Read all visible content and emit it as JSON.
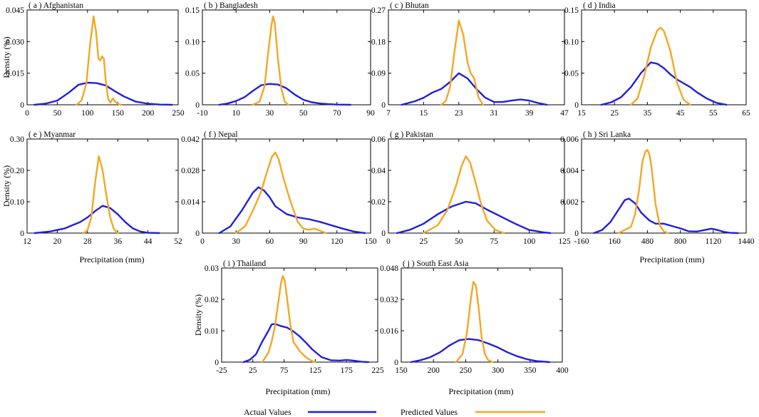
{
  "figure": {
    "y_axis_label": "Density (%)",
    "x_axis_label": "Precipitation (mm)",
    "legend": {
      "actual_label": "Actual Values",
      "predicted_label": "Predicted Values",
      "actual_color": "#1f1fe0",
      "predicted_color": "#f5a623"
    }
  },
  "chart_data": [
    {
      "type": "line",
      "title": "( a ) Afghanistan",
      "xticks": [
        "0",
        "50",
        "100",
        "150",
        "200",
        "250"
      ],
      "xlim": [
        0,
        250
      ],
      "yticks": [
        "0",
        "0.015",
        "0.030",
        "0.045"
      ],
      "ylim": [
        0,
        0.045
      ],
      "series": [
        {
          "name": "Actual Values",
          "x": [
            12,
            30,
            50,
            70,
            85,
            100,
            115,
            130,
            145,
            160,
            180,
            200,
            220,
            240
          ],
          "y": [
            0,
            0.0005,
            0.002,
            0.006,
            0.0095,
            0.0105,
            0.0103,
            0.0092,
            0.0065,
            0.004,
            0.0015,
            0.0005,
            0.0001,
            0
          ]
        },
        {
          "name": "Predicted Values",
          "x": [
            82,
            90,
            98,
            104,
            110,
            114,
            118,
            121,
            124,
            127,
            130,
            134,
            138,
            142,
            146,
            150,
            155
          ],
          "y": [
            0,
            0.002,
            0.01,
            0.028,
            0.042,
            0.035,
            0.022,
            0.021,
            0.023,
            0.022,
            0.012,
            0.003,
            0.001,
            0.003,
            0.0015,
            0.0005,
            0
          ]
        }
      ]
    },
    {
      "type": "line",
      "title": "( b ) Bangladesh",
      "xticks": [
        "-10",
        "10",
        "30",
        "50",
        "70",
        "90"
      ],
      "xlim": [
        -10,
        90
      ],
      "yticks": [
        "0",
        "0.05",
        "0.10",
        "0.15"
      ],
      "ylim": [
        0,
        0.15
      ],
      "series": [
        {
          "name": "Actual Values",
          "x": [
            0,
            5,
            10,
            15,
            20,
            25,
            30,
            35,
            40,
            45,
            50,
            55,
            60,
            65,
            70,
            78
          ],
          "y": [
            0,
            0.002,
            0.006,
            0.012,
            0.022,
            0.031,
            0.033,
            0.032,
            0.026,
            0.016,
            0.008,
            0.004,
            0.002,
            0.001,
            0.0003,
            0
          ]
        },
        {
          "name": "Predicted Values",
          "x": [
            20,
            24,
            27,
            29,
            31,
            32,
            33,
            35,
            37,
            39,
            41
          ],
          "y": [
            0,
            0.005,
            0.03,
            0.08,
            0.125,
            0.14,
            0.13,
            0.07,
            0.025,
            0.005,
            0
          ]
        }
      ]
    },
    {
      "type": "line",
      "title": "( c ) Bhutan",
      "xticks": [
        "7",
        "15",
        "23",
        "31",
        "39",
        "47"
      ],
      "xlim": [
        7,
        47
      ],
      "yticks": [
        "0",
        "0.09",
        "0.18",
        "0.27"
      ],
      "ylim": [
        0,
        0.27
      ],
      "series": [
        {
          "name": "Actual Values",
          "x": [
            10,
            13,
            15,
            17,
            19,
            21,
            23,
            25,
            27,
            29,
            31,
            33,
            35,
            37,
            39,
            41,
            43
          ],
          "y": [
            0,
            0.01,
            0.02,
            0.035,
            0.045,
            0.065,
            0.09,
            0.075,
            0.045,
            0.02,
            0.008,
            0.008,
            0.012,
            0.015,
            0.012,
            0.005,
            0
          ]
        },
        {
          "name": "Predicted Values",
          "x": [
            19,
            20,
            21,
            22,
            23,
            24,
            25,
            25.7,
            26.5,
            27.5,
            28.5
          ],
          "y": [
            0,
            0.01,
            0.05,
            0.15,
            0.24,
            0.2,
            0.12,
            0.09,
            0.075,
            0.02,
            0
          ]
        }
      ]
    },
    {
      "type": "line",
      "title": "( d ) India",
      "xticks": [
        "15",
        "25",
        "35",
        "45",
        "55",
        "65"
      ],
      "xlim": [
        15,
        65
      ],
      "yticks": [
        "0",
        "0.05",
        "0.10",
        "0.15"
      ],
      "ylim": [
        0,
        0.15
      ],
      "series": [
        {
          "name": "Actual Values",
          "x": [
            21,
            24,
            27,
            30,
            33,
            36,
            38,
            40,
            42,
            44,
            46,
            48,
            50,
            53,
            56,
            59
          ],
          "y": [
            0,
            0.004,
            0.012,
            0.028,
            0.05,
            0.067,
            0.065,
            0.058,
            0.048,
            0.04,
            0.034,
            0.028,
            0.02,
            0.01,
            0.003,
            0
          ]
        },
        {
          "name": "Predicted Values",
          "x": [
            30,
            32,
            34,
            36,
            38,
            39,
            40,
            42,
            44,
            46,
            48
          ],
          "y": [
            0,
            0.01,
            0.045,
            0.09,
            0.118,
            0.122,
            0.117,
            0.085,
            0.035,
            0.008,
            0
          ]
        }
      ]
    },
    {
      "type": "line",
      "title": "( e ) Myanmar",
      "xticks": [
        "12",
        "20",
        "28",
        "36",
        "44",
        "52"
      ],
      "xlim": [
        12,
        52
      ],
      "yticks": [
        "0",
        "0.10",
        "0.20",
        "0.30"
      ],
      "ylim": [
        0,
        0.3
      ],
      "series": [
        {
          "name": "Actual Values",
          "x": [
            14,
            18,
            22,
            26,
            28,
            30,
            32,
            34,
            36,
            38,
            40,
            42,
            44,
            47
          ],
          "y": [
            0,
            0.005,
            0.015,
            0.035,
            0.05,
            0.07,
            0.087,
            0.08,
            0.06,
            0.035,
            0.015,
            0.005,
            0.001,
            0
          ]
        },
        {
          "name": "Predicted Values",
          "x": [
            27,
            28,
            29,
            30,
            31,
            32,
            33,
            34,
            35,
            36
          ],
          "y": [
            0,
            0.01,
            0.05,
            0.16,
            0.245,
            0.2,
            0.12,
            0.05,
            0.012,
            0
          ]
        }
      ]
    },
    {
      "type": "line",
      "title": "( f ) Nepal",
      "xticks": [
        "0",
        "30",
        "60",
        "90",
        "120",
        "150"
      ],
      "xlim": [
        0,
        150
      ],
      "yticks": [
        "0",
        "0.014",
        "0.028",
        "0.042"
      ],
      "ylim": [
        0,
        0.042
      ],
      "series": [
        {
          "name": "Actual Values",
          "x": [
            15,
            25,
            35,
            45,
            50,
            55,
            60,
            65,
            75,
            85,
            95,
            105,
            115,
            125,
            135,
            145
          ],
          "y": [
            0,
            0.003,
            0.01,
            0.018,
            0.0205,
            0.019,
            0.016,
            0.012,
            0.0085,
            0.007,
            0.0062,
            0.005,
            0.0035,
            0.002,
            0.0007,
            0
          ]
        },
        {
          "name": "Predicted Values",
          "x": [
            30,
            38,
            45,
            52,
            58,
            62,
            65,
            68,
            72,
            78,
            85,
            90,
            95,
            100,
            105,
            110
          ],
          "y": [
            0,
            0.003,
            0.01,
            0.018,
            0.028,
            0.034,
            0.036,
            0.033,
            0.025,
            0.015,
            0.005,
            0.002,
            0.0015,
            0.002,
            0.001,
            0
          ]
        }
      ]
    },
    {
      "type": "line",
      "title": "( g ) Pakistan",
      "xticks": [
        "0",
        "25",
        "50",
        "75",
        "100",
        "125"
      ],
      "xlim": [
        0,
        125
      ],
      "yticks": [
        "0",
        "0.02",
        "0.04",
        "0.06"
      ],
      "ylim": [
        0,
        0.06
      ],
      "series": [
        {
          "name": "Actual Values",
          "x": [
            6,
            15,
            25,
            35,
            45,
            55,
            62,
            70,
            80,
            90,
            100,
            110,
            115
          ],
          "y": [
            0,
            0.002,
            0.006,
            0.012,
            0.017,
            0.02,
            0.019,
            0.015,
            0.0105,
            0.006,
            0.002,
            0.0005,
            0
          ]
        },
        {
          "name": "Predicted Values",
          "x": [
            25,
            35,
            42,
            48,
            52,
            55,
            58,
            62,
            66,
            70,
            76,
            82
          ],
          "y": [
            0,
            0.005,
            0.015,
            0.03,
            0.043,
            0.049,
            0.045,
            0.032,
            0.018,
            0.008,
            0.002,
            0
          ]
        }
      ]
    },
    {
      "type": "line",
      "title": "( h ) Sri Lanka",
      "xticks": [
        "-160",
        "160",
        "480",
        "800",
        "1120",
        "1440"
      ],
      "xlim": [
        -160,
        1440
      ],
      "yticks": [
        "0",
        "0.002",
        "0.004",
        "0.006"
      ],
      "ylim": [
        0,
        0.006
      ],
      "series": [
        {
          "name": "Actual Values",
          "x": [
            -40,
            40,
            120,
            200,
            260,
            300,
            360,
            420,
            500,
            560,
            640,
            720,
            800,
            880,
            960,
            1040,
            1100,
            1160,
            1220,
            1280,
            1360
          ],
          "y": [
            0,
            0.0002,
            0.0007,
            0.0015,
            0.0021,
            0.0022,
            0.0019,
            0.0013,
            0.0008,
            0.0006,
            0.0006,
            0.00045,
            0.0003,
            0.00012,
            0.0001,
            0.0002,
            0.00028,
            0.0002,
            8e-05,
            2e-05,
            0
          ]
        },
        {
          "name": "Predicted Values",
          "x": [
            200,
            260,
            320,
            360,
            400,
            430,
            460,
            480,
            500,
            520,
            560,
            600,
            640,
            680
          ],
          "y": [
            0,
            0.0002,
            0.0004,
            0.0012,
            0.0028,
            0.0045,
            0.0052,
            0.0053,
            0.005,
            0.0042,
            0.0018,
            0.0005,
            0.0001,
            0
          ]
        }
      ]
    },
    {
      "type": "line",
      "title": "( i ) Thailand",
      "xticks": [
        "-25",
        "25",
        "75",
        "125",
        "175",
        "225"
      ],
      "xlim": [
        -25,
        225
      ],
      "yticks": [
        "0",
        "0.01",
        "0.02",
        "0.03"
      ],
      "ylim": [
        0,
        0.03
      ],
      "series": [
        {
          "name": "Actual Values",
          "x": [
            10,
            20,
            30,
            40,
            50,
            55,
            60,
            70,
            80,
            90,
            100,
            110,
            120,
            135,
            150,
            165,
            175,
            185,
            200,
            210
          ],
          "y": [
            0,
            0.0007,
            0.0025,
            0.0065,
            0.01,
            0.012,
            0.0122,
            0.0115,
            0.011,
            0.0098,
            0.0082,
            0.0062,
            0.0041,
            0.0016,
            0.0006,
            0.0005,
            0.0007,
            0.0005,
            0.0001,
            0
          ]
        },
        {
          "name": "Predicted Values",
          "x": [
            40,
            50,
            55,
            60,
            65,
            70,
            73,
            76,
            80,
            85,
            90,
            100,
            110,
            120,
            125
          ],
          "y": [
            0,
            0.003,
            0.0065,
            0.011,
            0.018,
            0.025,
            0.0275,
            0.026,
            0.02,
            0.012,
            0.0065,
            0.0035,
            0.0015,
            0.0003,
            0
          ]
        }
      ]
    },
    {
      "type": "line",
      "title": "( j ) South East Asia",
      "xticks": [
        "150",
        "200",
        "250",
        "300",
        "350",
        "400"
      ],
      "xlim": [
        150,
        400
      ],
      "yticks": [
        "0",
        "0.016",
        "0.032",
        "0.048"
      ],
      "ylim": [
        0,
        0.048
      ],
      "series": [
        {
          "name": "Actual Values",
          "x": [
            165,
            180,
            195,
            210,
            225,
            240,
            255,
            270,
            285,
            300,
            315,
            330,
            345,
            360,
            380
          ],
          "y": [
            0,
            0.001,
            0.0025,
            0.005,
            0.0085,
            0.0112,
            0.0118,
            0.0112,
            0.0095,
            0.0075,
            0.005,
            0.003,
            0.0015,
            0.0005,
            0
          ]
        },
        {
          "name": "Predicted Values",
          "x": [
            235,
            245,
            252,
            258,
            262,
            266,
            270,
            275,
            280,
            285,
            292
          ],
          "y": [
            0,
            0.004,
            0.015,
            0.032,
            0.041,
            0.039,
            0.028,
            0.012,
            0.004,
            0.001,
            0
          ]
        }
      ]
    }
  ]
}
